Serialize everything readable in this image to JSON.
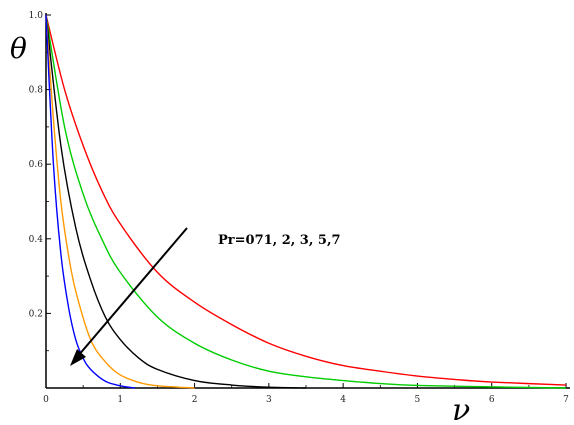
{
  "chart_data": {
    "type": "line",
    "xlabel": "ν",
    "ylabel": "θ",
    "xlim": [
      0,
      7
    ],
    "ylim": [
      0,
      1.0
    ],
    "x_ticks": [
      0,
      1,
      2,
      3,
      4,
      5,
      6,
      7
    ],
    "x_tick_labels": [
      "0",
      "1",
      "2",
      "3",
      "4",
      "5",
      "6",
      "7"
    ],
    "y_ticks": [
      0.2,
      0.4,
      0.6,
      0.8,
      1.0
    ],
    "y_tick_labels": [
      "0.2",
      "0.4",
      "0.6",
      "0.8",
      "1.0"
    ],
    "grid": false,
    "annotation": "Pr=071, 2, 3, 5,7",
    "series": [
      {
        "color": "#ff0000",
        "x": [
          0,
          0.25,
          0.5,
          0.75,
          1,
          1.5,
          2,
          2.5,
          3,
          3.5,
          4,
          4.5,
          5,
          5.5,
          6,
          7
        ],
        "values": [
          1.0,
          0.8,
          0.65,
          0.53,
          0.44,
          0.31,
          0.23,
          0.17,
          0.12,
          0.085,
          0.06,
          0.045,
          0.032,
          0.023,
          0.016,
          0.008
        ]
      },
      {
        "color": "#00cc00",
        "x": [
          0,
          0.25,
          0.5,
          0.75,
          1,
          1.5,
          2,
          2.5,
          3,
          3.5,
          4,
          4.5,
          5,
          6,
          7
        ],
        "values": [
          1.0,
          0.7,
          0.52,
          0.4,
          0.31,
          0.19,
          0.12,
          0.075,
          0.045,
          0.03,
          0.02,
          0.012,
          0.007,
          0.003,
          0.0
        ]
      },
      {
        "color": "#000000",
        "x": [
          0,
          0.2,
          0.4,
          0.6,
          0.8,
          1,
          1.25,
          1.5,
          2,
          2.5,
          3,
          3.5
        ],
        "values": [
          1.0,
          0.65,
          0.43,
          0.29,
          0.19,
          0.13,
          0.08,
          0.05,
          0.02,
          0.008,
          0.002,
          0.0
        ]
      },
      {
        "color": "#ff9900",
        "x": [
          0,
          0.1,
          0.2,
          0.3,
          0.4,
          0.6,
          0.8,
          1,
          1.25,
          1.5,
          2
        ],
        "values": [
          1.0,
          0.72,
          0.5,
          0.36,
          0.26,
          0.13,
          0.07,
          0.035,
          0.015,
          0.006,
          0.0
        ]
      },
      {
        "color": "#0000ff",
        "x": [
          0,
          0.1,
          0.2,
          0.3,
          0.4,
          0.5,
          0.6,
          0.8,
          1,
          1.2
        ],
        "values": [
          1.0,
          0.6,
          0.36,
          0.22,
          0.13,
          0.08,
          0.05,
          0.018,
          0.006,
          0.0
        ]
      }
    ]
  }
}
